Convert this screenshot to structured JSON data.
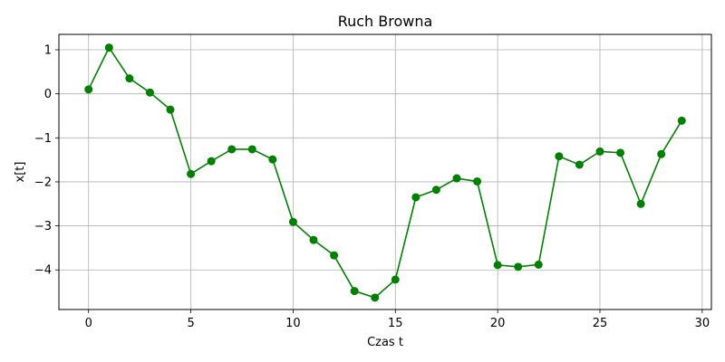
{
  "chart_data": {
    "type": "line",
    "title": "Ruch Browna",
    "xlabel": "Czas t",
    "ylabel": "x[t]",
    "xlim": [
      -1.45,
      30.45
    ],
    "ylim": [
      -4.9,
      1.35
    ],
    "grid": true,
    "marker": "circle",
    "line_color": "#008000",
    "x_ticks": [
      0,
      5,
      10,
      15,
      20,
      25,
      30
    ],
    "x_tick_labels": [
      "0",
      "5",
      "10",
      "15",
      "20",
      "25",
      "30"
    ],
    "y_ticks": [
      1,
      0,
      -1,
      -2,
      -3,
      -4
    ],
    "y_tick_labels": [
      "1",
      "0",
      "−1",
      "−2",
      "−3",
      "−4"
    ],
    "series": [
      {
        "x": [
          0,
          1,
          2,
          3,
          4,
          5,
          6,
          7,
          8,
          9,
          10,
          11,
          12,
          13,
          14,
          15,
          16,
          17,
          18,
          19,
          20,
          21,
          22,
          23,
          24,
          25,
          26,
          27,
          28,
          29
        ],
        "values": [
          0.1,
          1.05,
          0.35,
          0.03,
          -0.36,
          -1.82,
          -1.53,
          -1.26,
          -1.26,
          -1.49,
          -2.91,
          -3.32,
          -3.67,
          -4.48,
          -4.63,
          -4.22,
          -2.35,
          -2.18,
          -1.92,
          -1.99,
          -3.89,
          -3.93,
          -3.88,
          -1.42,
          -1.61,
          -1.31,
          -1.34,
          -2.5,
          -1.37,
          -0.61
        ]
      }
    ]
  }
}
